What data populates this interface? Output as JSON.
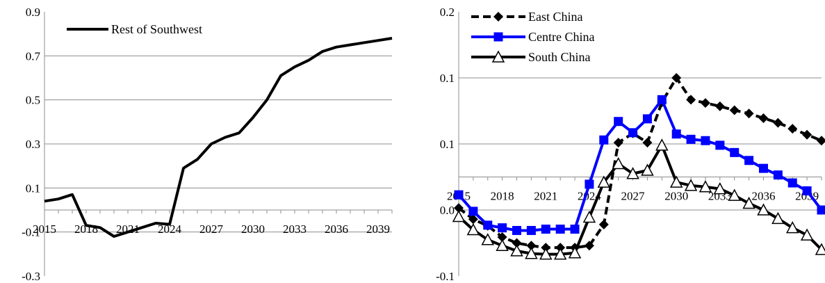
{
  "chart_data": [
    {
      "type": "line",
      "x": [
        2015,
        2016,
        2017,
        2018,
        2019,
        2020,
        2021,
        2022,
        2023,
        2024,
        2025,
        2026,
        2027,
        2028,
        2029,
        2030,
        2031,
        2032,
        2033,
        2034,
        2035,
        2036,
        2037,
        2038,
        2039,
        2040
      ],
      "xticks": [
        2015,
        2018,
        2021,
        2024,
        2027,
        2030,
        2033,
        2036,
        2039
      ],
      "ylim": [
        -0.3,
        0.9
      ],
      "yticks": [
        -0.3,
        -0.1,
        0.1,
        0.3,
        0.5,
        0.7,
        0.9
      ],
      "ytick_labels": [
        "-0.3",
        "-0.1",
        "0.1",
        "0.3",
        "0.5",
        "0.7",
        "0.9"
      ],
      "grid": true,
      "legend_position": "top-left",
      "series": [
        {
          "name": "Rest of Southwest",
          "color": "#000000",
          "marker": "none",
          "dashed": false,
          "values": [
            0.04,
            0.05,
            0.07,
            -0.07,
            -0.08,
            -0.12,
            -0.1,
            -0.08,
            -0.06,
            -0.065,
            0.19,
            0.23,
            0.3,
            0.33,
            0.35,
            0.42,
            0.5,
            0.61,
            0.65,
            0.68,
            0.72,
            0.74,
            0.75,
            0.76,
            0.77,
            0.78
          ]
        }
      ]
    },
    {
      "type": "line",
      "x": [
        2015,
        2016,
        2017,
        2018,
        2019,
        2020,
        2021,
        2022,
        2023,
        2024,
        2025,
        2026,
        2027,
        2028,
        2029,
        2030,
        2031,
        2032,
        2033,
        2034,
        2035,
        2036,
        2037,
        2038,
        2039,
        2040
      ],
      "xticks": [
        2015,
        2018,
        2021,
        2024,
        2027,
        2030,
        2033,
        2036,
        2039
      ],
      "ylim": [
        -0.15,
        0.25
      ],
      "yticks": [
        -0.15,
        -0.05,
        0.05,
        0.15,
        0.25
      ],
      "ytick_labels": [
        "-0.1",
        "0.0",
        "0.1",
        "0.1",
        "0.2"
      ],
      "grid": true,
      "legend_position": "top-left",
      "series": [
        {
          "name": "East China",
          "color": "#000000",
          "marker": "diamond",
          "dashed": true,
          "values": [
            -0.047,
            -0.064,
            -0.074,
            -0.091,
            -0.1,
            -0.104,
            -0.107,
            -0.107,
            -0.107,
            -0.104,
            -0.072,
            0.052,
            0.066,
            0.052,
            0.113,
            0.15,
            0.117,
            0.112,
            0.107,
            0.101,
            0.096,
            0.089,
            0.082,
            0.073,
            0.064,
            0.055
          ]
        },
        {
          "name": "Centre China",
          "color": "#0000ff",
          "marker": "square",
          "dashed": false,
          "values": [
            -0.027,
            -0.052,
            -0.073,
            -0.077,
            -0.081,
            -0.081,
            -0.079,
            -0.079,
            -0.079,
            -0.011,
            0.056,
            0.084,
            0.067,
            0.088,
            0.117,
            0.065,
            0.057,
            0.055,
            0.048,
            0.037,
            0.025,
            0.013,
            0.003,
            -0.009,
            -0.021,
            -0.05
          ]
        },
        {
          "name": "South China",
          "color": "#000000",
          "marker": "triangle-open",
          "dashed": false,
          "values": [
            -0.06,
            -0.08,
            -0.095,
            -0.104,
            -0.112,
            -0.116,
            -0.117,
            -0.117,
            -0.115,
            -0.061,
            -0.008,
            0.02,
            0.005,
            0.01,
            0.048,
            -0.008,
            -0.013,
            -0.015,
            -0.018,
            -0.028,
            -0.04,
            -0.05,
            -0.063,
            -0.077,
            -0.088,
            -0.11
          ]
        }
      ]
    }
  ]
}
